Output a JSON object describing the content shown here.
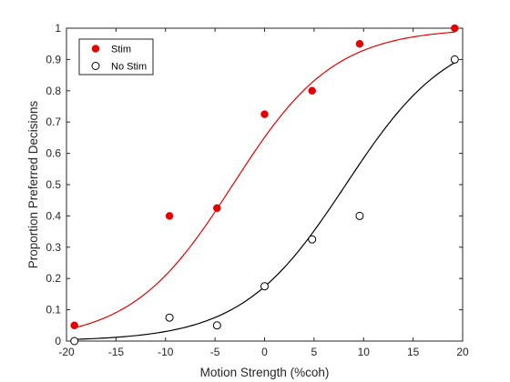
{
  "chart_data": {
    "type": "scatter",
    "title": "",
    "xlabel": "Motion Strength (%coh)",
    "ylabel": "Proportion Preferred Decisions",
    "xlim": [
      -20,
      20
    ],
    "ylim": [
      0,
      1
    ],
    "xticks": [
      -20,
      -15,
      -10,
      -5,
      0,
      5,
      10,
      15,
      20
    ],
    "yticks": [
      0,
      0.1,
      0.2,
      0.3,
      0.4,
      0.5,
      0.6,
      0.7,
      0.8,
      0.9,
      1
    ],
    "grid": false,
    "legend_position": "top-left",
    "series": [
      {
        "name": "Stim",
        "marker": "filled-circle",
        "color": "#e60000",
        "x": [
          -19.2,
          -9.6,
          -4.8,
          0,
          4.8,
          9.6,
          19.2
        ],
        "y": [
          0.05,
          0.4,
          0.425,
          0.725,
          0.8,
          0.95,
          1.0
        ],
        "fit": {
          "type": "logistic",
          "x0": -3.2,
          "slope": 0.195,
          "x_range": [
            -19.2,
            19.2
          ]
        }
      },
      {
        "name": "No Stim",
        "marker": "open-circle",
        "color": "#000000",
        "x": [
          -19.2,
          -9.6,
          -4.8,
          0,
          4.8,
          9.6,
          19.2
        ],
        "y": [
          0.0,
          0.075,
          0.05,
          0.175,
          0.325,
          0.4,
          0.9
        ],
        "fit": {
          "type": "logistic",
          "x0": 8.2,
          "slope": 0.19,
          "x_range": [
            -19.2,
            19.2
          ]
        }
      }
    ]
  }
}
